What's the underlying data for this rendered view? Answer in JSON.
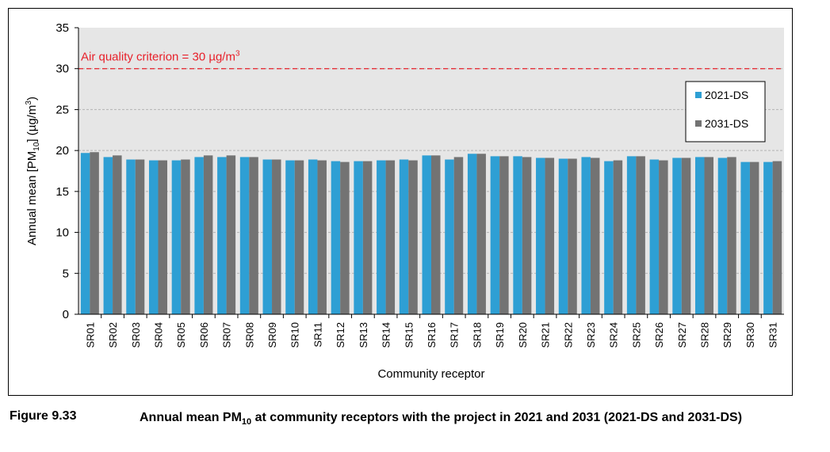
{
  "chart_data": {
    "type": "bar",
    "ylabel_prefix": "Annual mean [PM",
    "ylabel_sub": "10",
    "ylabel_mid": "] (µg/m",
    "ylabel_sup": "3",
    "ylabel_suffix": ")",
    "xlabel": "Community receptor",
    "ylim": [
      0,
      35
    ],
    "yticks": [
      0,
      5,
      10,
      15,
      20,
      25,
      30,
      35
    ],
    "grid": true,
    "legend_position": "top-right",
    "categories": [
      "SR01",
      "SR02",
      "SR03",
      "SR04",
      "SR05",
      "SR06",
      "SR07",
      "SR08",
      "SR09",
      "SR10",
      "SR11",
      "SR12",
      "SR13",
      "SR14",
      "SR15",
      "SR16",
      "SR17",
      "SR18",
      "SR19",
      "SR20",
      "SR21",
      "SR22",
      "SR23",
      "SR24",
      "SR25",
      "SR26",
      "SR27",
      "SR28",
      "SR29",
      "SR30",
      "SR31"
    ],
    "series": [
      {
        "name": "2021-DS",
        "color": "#2e9fd4",
        "values": [
          19.7,
          19.2,
          18.9,
          18.8,
          18.8,
          19.2,
          19.2,
          19.2,
          18.9,
          18.8,
          18.9,
          18.7,
          18.7,
          18.8,
          18.9,
          19.4,
          18.9,
          19.6,
          19.3,
          19.3,
          19.1,
          19.0,
          19.2,
          18.7,
          19.3,
          18.9,
          19.1,
          19.2,
          19.1,
          18.6,
          18.6
        ]
      },
      {
        "name": "2031-DS",
        "color": "#737373",
        "values": [
          19.8,
          19.4,
          18.9,
          18.8,
          18.9,
          19.4,
          19.4,
          19.2,
          18.9,
          18.8,
          18.8,
          18.6,
          18.7,
          18.8,
          18.8,
          19.4,
          19.2,
          19.6,
          19.3,
          19.2,
          19.1,
          19.0,
          19.1,
          18.8,
          19.3,
          18.8,
          19.1,
          19.2,
          19.2,
          18.6,
          18.7
        ]
      }
    ],
    "criterion": {
      "value": 30,
      "label_prefix": "Air quality criterion = 30 µg/m",
      "label_sup": "3",
      "color": "#e8202a"
    },
    "background_color": "#e6e6e6"
  },
  "caption": {
    "figure_number": "Figure 9.33",
    "text_before_sub": "Annual mean PM",
    "sub": "10",
    "text_after_sub": " at community receptors with the project in 2021 and 2031 (2021-DS and 2031-DS)"
  }
}
